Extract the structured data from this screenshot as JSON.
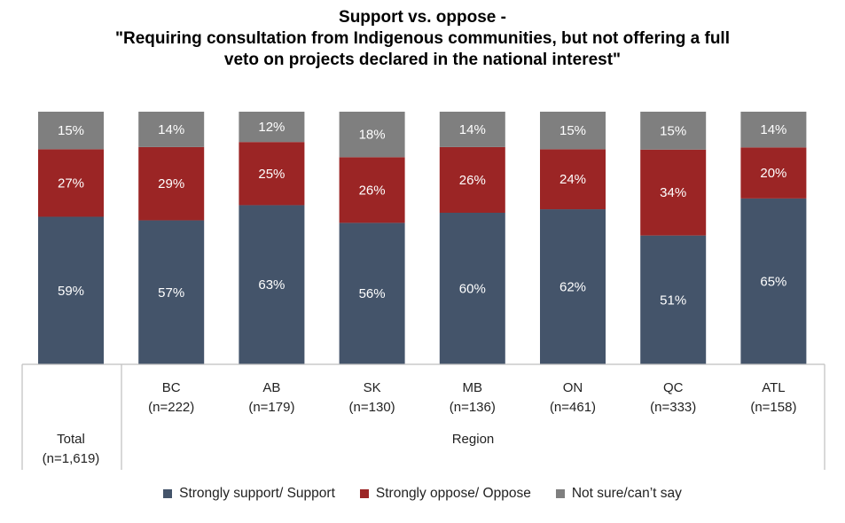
{
  "chart_data": {
    "type": "bar",
    "stacked": true,
    "title_lines": [
      "Support vs. oppose -",
      "\"Requiring consultation from Indigenous communities, but not offering a full",
      "veto on projects declared in the national interest\""
    ],
    "categories": [
      {
        "name": "Total",
        "n": "(n=1,619)",
        "group": ""
      },
      {
        "name": "BC",
        "n": "(n=222)",
        "group": "Region"
      },
      {
        "name": "AB",
        "n": "(n=179)",
        "group": "Region"
      },
      {
        "name": "SK",
        "n": "(n=130)",
        "group": "Region"
      },
      {
        "name": "MB",
        "n": "(n=136)",
        "group": "Region"
      },
      {
        "name": "ON",
        "n": "(n=461)",
        "group": "Region"
      },
      {
        "name": "QC",
        "n": "(n=333)",
        "group": "Region"
      },
      {
        "name": "ATL",
        "n": "(n=158)",
        "group": "Region"
      }
    ],
    "group_label": "Region",
    "series": [
      {
        "name": "Strongly support/ Support",
        "color": "#44546A",
        "values": [
          59,
          57,
          63,
          56,
          60,
          62,
          51,
          65
        ]
      },
      {
        "name": "Strongly oppose/ Oppose",
        "color": "#9B2525",
        "values": [
          27,
          29,
          25,
          26,
          26,
          24,
          34,
          20
        ]
      },
      {
        "name": "Not sure/can’t say",
        "color": "#7F7F7F",
        "values": [
          15,
          14,
          12,
          18,
          14,
          15,
          15,
          14
        ]
      }
    ],
    "data_labels": [
      [
        "59%",
        "57%",
        "63%",
        "56%",
        "60%",
        "62%",
        "51%",
        "65%"
      ],
      [
        "27%",
        "29%",
        "25%",
        "26%",
        "26%",
        "24%",
        "34%",
        "20%"
      ],
      [
        "15%",
        "14%",
        "12%",
        "18%",
        "14%",
        "15%",
        "15%",
        "14%"
      ]
    ],
    "ylim": [
      0,
      100
    ],
    "grid": false,
    "legend_position": "bottom"
  }
}
